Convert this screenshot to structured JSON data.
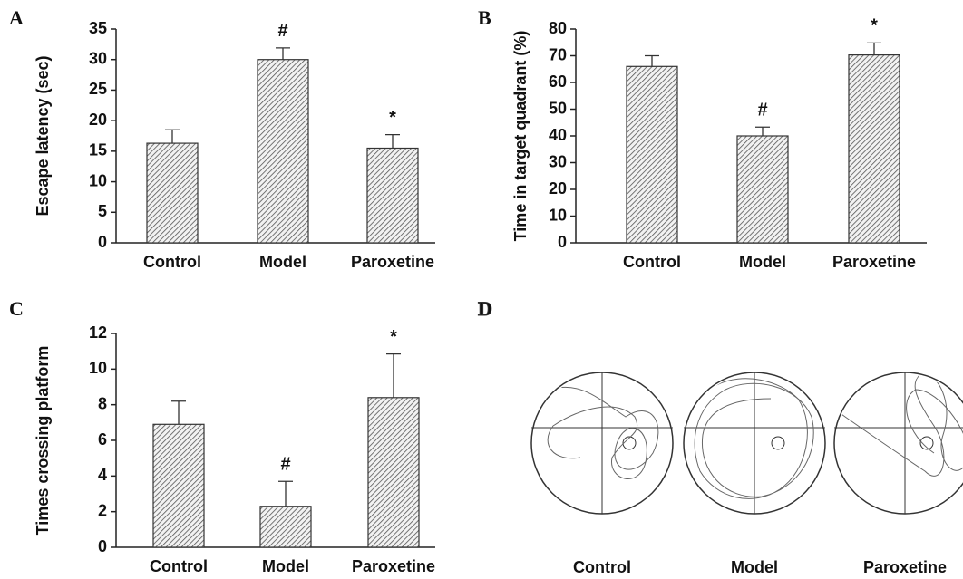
{
  "chart_data": [
    {
      "type": "bar",
      "panel": "A",
      "ylabel": "Escape latency (sec)",
      "categories": [
        "Control",
        "Model",
        "Paroxetine"
      ],
      "values": [
        16.3,
        30,
        15.5
      ],
      "errors": [
        2.2,
        1.9,
        2.2
      ],
      "annotations": [
        {
          "index": 1,
          "text": "#"
        },
        {
          "index": 2,
          "text": "*"
        }
      ],
      "ylim": [
        0,
        35
      ],
      "yticks": [
        0,
        5,
        10,
        15,
        20,
        25,
        30,
        35
      ],
      "color": "#888888"
    },
    {
      "type": "bar",
      "panel": "B",
      "ylabel": "Time in target quadrant (%)",
      "categories": [
        "Control",
        "Model",
        "Paroxetine"
      ],
      "values": [
        66,
        40,
        70.3
      ],
      "errors": [
        4,
        3.3,
        4.5
      ],
      "annotations": [
        {
          "index": 1,
          "text": "#"
        },
        {
          "index": 2,
          "text": "*"
        }
      ],
      "ylim": [
        0,
        80
      ],
      "yticks": [
        0,
        10,
        20,
        30,
        40,
        50,
        60,
        70,
        80
      ],
      "color": "#888888"
    },
    {
      "type": "bar",
      "panel": "C",
      "ylabel": "Times crossing platform",
      "categories": [
        "Control",
        "Model",
        "Paroxetine"
      ],
      "values": [
        6.9,
        2.3,
        8.4
      ],
      "errors": [
        1.3,
        1.4,
        2.45
      ],
      "annotations": [
        {
          "index": 1,
          "text": "#"
        },
        {
          "index": 2,
          "text": "*"
        }
      ],
      "ylim": [
        0,
        12
      ],
      "yticks": [
        0,
        2,
        4,
        6,
        8,
        10,
        12
      ],
      "color": "#888888"
    }
  ],
  "panel_d": {
    "label": "D",
    "captions": [
      "Control",
      "Model",
      "Paroxetine"
    ]
  }
}
